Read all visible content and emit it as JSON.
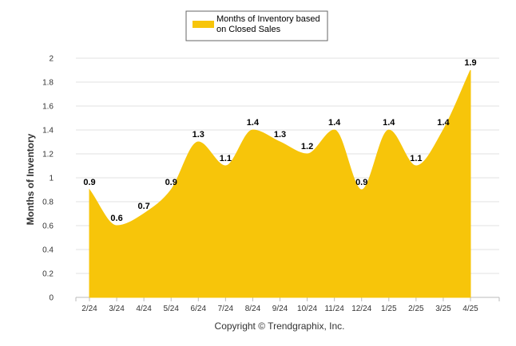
{
  "chart_data": {
    "type": "area",
    "categories": [
      "2/24",
      "3/24",
      "4/24",
      "5/24",
      "6/24",
      "7/24",
      "8/24",
      "9/24",
      "10/24",
      "11/24",
      "12/24",
      "1/25",
      "2/25",
      "3/25",
      "4/25"
    ],
    "series": [
      {
        "name": "Months of Inventory based on Closed Sales",
        "values": [
          0.9,
          0.6,
          0.7,
          0.9,
          1.3,
          1.1,
          1.4,
          1.3,
          1.2,
          1.4,
          0.9,
          1.4,
          1.1,
          1.4,
          1.9
        ],
        "color": "#F7C50A"
      }
    ],
    "data_labels": [
      "0.9",
      "0.6",
      "0.7",
      "0.9",
      "1.3",
      "1.1",
      "1.4",
      "1.3",
      "1.2",
      "1.4",
      "0.9",
      "1.4",
      "1.1",
      "1.4",
      "1.9"
    ],
    "ylabel": "Months of Inventory",
    "xlabel": "",
    "ylim": [
      0,
      2
    ],
    "yticks": [
      0,
      0.2,
      0.4,
      0.6,
      0.8,
      1,
      1.2,
      1.4,
      1.6,
      1.8,
      2
    ],
    "ytick_labels": [
      "0",
      "0.2",
      "0.4",
      "0.6",
      "0.8",
      "1",
      "1.2",
      "1.4",
      "1.6",
      "1.8",
      "2"
    ],
    "grid": "horizontal",
    "legend": {
      "position": "top-center",
      "lines": [
        "Months of Inventory based",
        "on Closed Sales"
      ]
    },
    "copyright": "Copyright © Trendgraphix, Inc."
  }
}
